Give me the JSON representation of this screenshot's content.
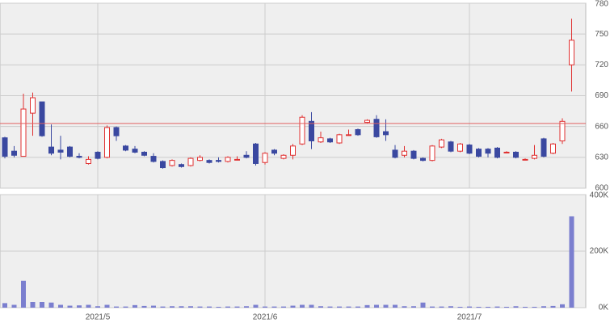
{
  "chart_data": [
    {
      "type": "candlestick",
      "categories": [
        null,
        null,
        null,
        null,
        null,
        null,
        null,
        null,
        null,
        null,
        "2021/5",
        null,
        null,
        null,
        null,
        null,
        null,
        null,
        null,
        null,
        null,
        null,
        null,
        null,
        null,
        null,
        null,
        null,
        "2021/6",
        null,
        null,
        null,
        null,
        null,
        null,
        null,
        null,
        null,
        null,
        null,
        null,
        null,
        null,
        null,
        null,
        null,
        null,
        null,
        null,
        null,
        "2021/7",
        null,
        null,
        null,
        null,
        null,
        null,
        null,
        null,
        null,
        null,
        null
      ],
      "open": [
        649,
        636,
        631,
        673,
        684,
        640,
        637,
        640,
        631,
        624,
        635,
        630,
        659,
        641,
        638,
        635,
        631,
        626,
        622,
        623,
        622,
        627,
        627,
        627,
        626,
        628,
        632,
        643,
        625,
        637,
        629,
        632,
        643,
        665,
        645,
        648,
        644,
        652,
        657,
        664,
        667,
        655,
        637,
        632,
        636,
        629,
        627,
        640,
        645,
        636,
        642,
        638,
        638,
        639,
        635,
        635,
        628,
        629,
        648,
        634,
        646,
        720
      ],
      "high": [
        650,
        641,
        692,
        693,
        684,
        662,
        651,
        641,
        634,
        631,
        636,
        661,
        660,
        642,
        641,
        636,
        634,
        627,
        628,
        624,
        630,
        632,
        628,
        630,
        631,
        631,
        636,
        644,
        635,
        638,
        633,
        643,
        671,
        674,
        655,
        649,
        653,
        657,
        658,
        667,
        671,
        667,
        642,
        641,
        637,
        630,
        642,
        648,
        646,
        644,
        643,
        639,
        639,
        640,
        636,
        636,
        629,
        642,
        649,
        644,
        668,
        765
      ],
      "low": [
        629,
        630,
        631,
        651,
        650,
        632,
        628,
        630,
        629,
        623,
        628,
        629,
        646,
        636,
        634,
        631,
        625,
        619,
        621,
        620,
        621,
        626,
        624,
        625,
        625,
        627,
        629,
        622,
        623,
        632,
        628,
        628,
        642,
        638,
        644,
        644,
        643,
        651,
        651,
        663,
        649,
        646,
        629,
        630,
        628,
        626,
        626,
        639,
        635,
        635,
        633,
        630,
        630,
        629,
        634,
        629,
        627,
        628,
        630,
        633,
        643,
        694
      ],
      "close": [
        631,
        632,
        677,
        688,
        651,
        634,
        635,
        631,
        630,
        628,
        629,
        659,
        651,
        637,
        635,
        632,
        626,
        620,
        627,
        621,
        629,
        630,
        625,
        626,
        630,
        628,
        630,
        624,
        634,
        634,
        632,
        641,
        669,
        646,
        649,
        645,
        652,
        652,
        652,
        666,
        650,
        652,
        630,
        636,
        629,
        627,
        641,
        647,
        636,
        643,
        634,
        631,
        634,
        630,
        635,
        630,
        628,
        632,
        631,
        643,
        665,
        744
      ],
      "up_color": "#e03030",
      "down_color": "#3a48a0",
      "reference_line": 663,
      "reference_color": "#e06060",
      "ylim": [
        600,
        780
      ],
      "yticks": [
        600,
        630,
        660,
        690,
        720,
        750,
        780
      ],
      "grid": true
    },
    {
      "type": "bar",
      "values": [
        16000,
        10000,
        95000,
        20000,
        20000,
        18000,
        10000,
        7000,
        8000,
        10000,
        5000,
        10000,
        4000,
        4000,
        9000,
        6000,
        7000,
        4000,
        5000,
        5000,
        5000,
        4000,
        4000,
        3000,
        4000,
        4000,
        5000,
        10000,
        4000,
        4000,
        4000,
        7000,
        10000,
        10000,
        5000,
        4000,
        4000,
        4000,
        4000,
        9000,
        10000,
        10000,
        10000,
        5000,
        5000,
        18000,
        4000,
        4000,
        5000,
        3000,
        4000,
        3000,
        3000,
        4000,
        3000,
        5000,
        3000,
        3000,
        5000,
        6000,
        12000,
        323000
      ],
      "color": "#7b7fcf",
      "ylim": [
        0,
        400000
      ],
      "yticks": [
        {
          "value": 0,
          "label": "0K"
        },
        {
          "value": 200000,
          "label": "200K"
        },
        {
          "value": 400000,
          "label": "400K"
        }
      ],
      "grid": true
    }
  ]
}
